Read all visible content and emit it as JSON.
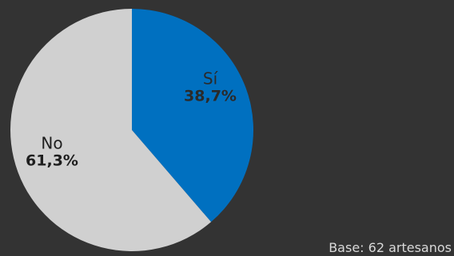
{
  "chart_data": {
    "type": "pie",
    "categories": [
      "Sí",
      "No"
    ],
    "values": [
      38.7,
      61.3
    ],
    "value_labels": [
      "38,7%",
      "61,3%"
    ],
    "colors": [
      "#0070c0",
      "#d0d0d0"
    ],
    "start": "12 o'clock",
    "direction": "clockwise",
    "legend": "none",
    "footnote": "Base: 62 artesanos"
  }
}
